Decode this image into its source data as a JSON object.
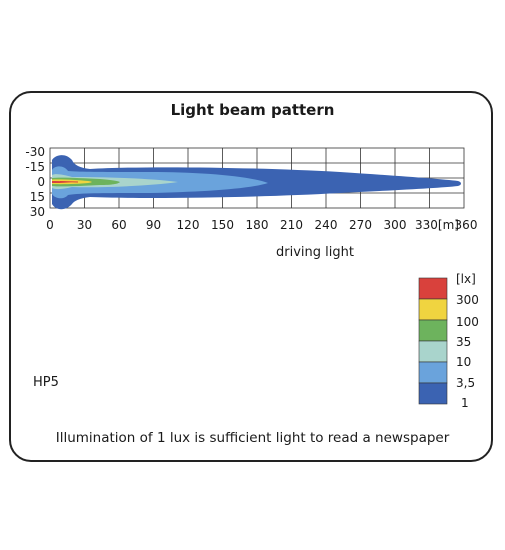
{
  "title": "Light beam pattern",
  "subtitle": "driving light",
  "model": "HP5",
  "footnote": "Illumination of 1 lux is sufficient light to read a newspaper",
  "axes": {
    "x_ticks": [
      "0",
      "30",
      "60",
      "90",
      "120",
      "150",
      "180",
      "210",
      "240",
      "270",
      "300",
      "330[m]",
      "360"
    ],
    "y_ticks": [
      "-30",
      "-15",
      "0",
      "15",
      "30"
    ]
  },
  "legend": {
    "unit": "[lx]",
    "levels": [
      {
        "label": "300",
        "color": "#d9413c"
      },
      {
        "label": "100",
        "color": "#f0d440"
      },
      {
        "label": "35",
        "color": "#6db35d"
      },
      {
        "label": "10",
        "color": "#a9d4cc"
      },
      {
        "label": "3,5",
        "color": "#6aa3dc"
      },
      {
        "label": "1",
        "color": "#3b63b2"
      }
    ]
  },
  "colors": {
    "lux_1": "#3b63b2",
    "lux_3_5": "#6aa3dc",
    "lux_10": "#a9d4cc",
    "lux_35": "#6db35d",
    "lux_100": "#f0d440",
    "lux_300": "#d9413c"
  }
}
